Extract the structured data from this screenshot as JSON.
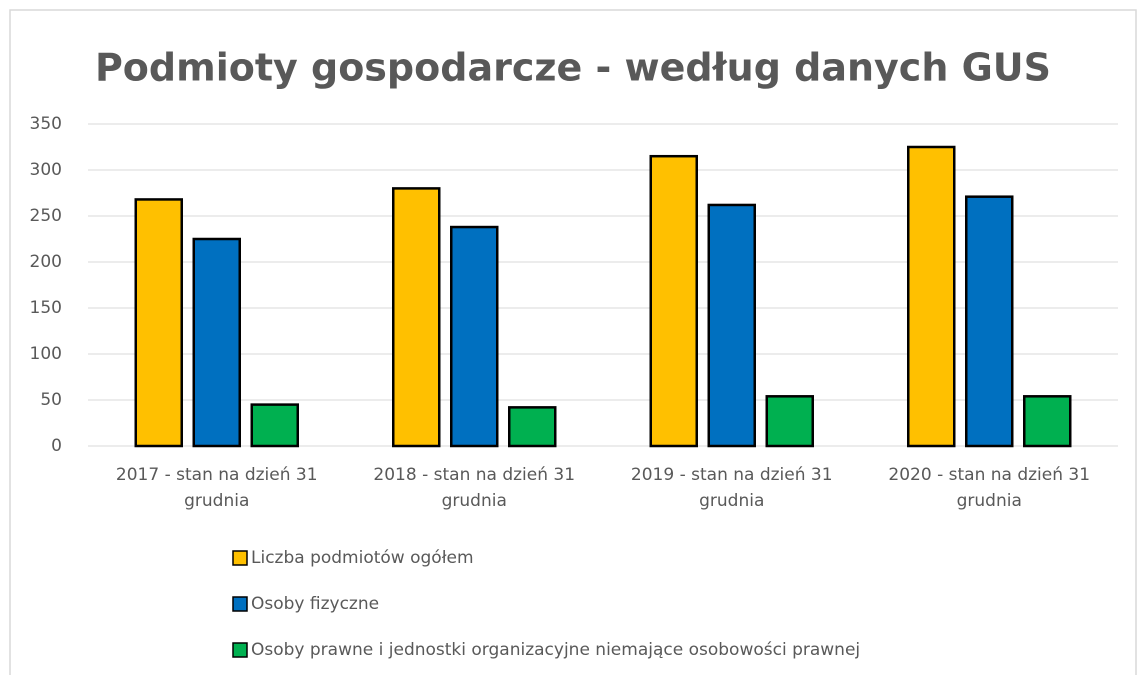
{
  "chart_data": {
    "type": "bar",
    "title": "Podmioty gospodarcze - według danych GUS",
    "categories": [
      "2017 - stan na dzień 31 grudnia",
      "2018 - stan na dzień 31 grudnia",
      "2019 - stan na dzień 31 grudnia",
      "2020 - stan na dzień 31 grudnia"
    ],
    "series": [
      {
        "name": "Liczba podmiotów ogółem",
        "color": "#FFC000",
        "values": [
          268,
          280,
          315,
          325
        ]
      },
      {
        "name": "Osoby fizyczne",
        "color": "#0070C0",
        "values": [
          225,
          238,
          262,
          271
        ]
      },
      {
        "name": "Osoby prawne i jednostki organizacyjne niemające osobowości prawnej",
        "color": "#00B050",
        "values": [
          45,
          42,
          54,
          54
        ]
      }
    ],
    "ylim": [
      0,
      350
    ],
    "yticks": [
      0,
      50,
      100,
      150,
      200,
      250,
      300,
      350
    ],
    "grid": true,
    "legend": "bottom"
  }
}
